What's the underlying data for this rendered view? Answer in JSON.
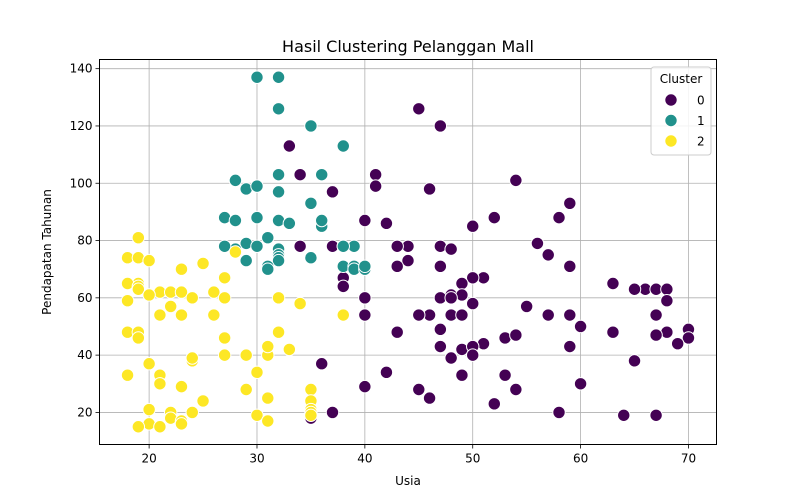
{
  "chart_data": {
    "type": "scatter",
    "title": "Hasil Clustering Pelanggan Mall",
    "xlabel": "Usia",
    "ylabel": "Pendapatan Tahunan",
    "xlim": [
      15.4,
      72.6
    ],
    "ylim": [
      8.8,
      143.2
    ],
    "xticks": [
      20,
      30,
      40,
      50,
      60,
      70
    ],
    "yticks": [
      20,
      40,
      60,
      80,
      100,
      120,
      140
    ],
    "grid": true,
    "legend": {
      "title": "Cluster",
      "placement": "top-right"
    },
    "series": [
      {
        "name": "0",
        "color": "#440154",
        "points": [
          [
            45,
            126
          ],
          [
            47,
            120
          ],
          [
            33,
            113
          ],
          [
            54,
            101
          ],
          [
            34,
            103
          ],
          [
            41,
            103
          ],
          [
            41,
            99
          ],
          [
            46,
            98
          ],
          [
            37,
            97
          ],
          [
            59,
            93
          ],
          [
            52,
            88
          ],
          [
            58,
            88
          ],
          [
            40,
            87
          ],
          [
            42,
            86
          ],
          [
            50,
            85
          ],
          [
            56,
            79
          ],
          [
            44,
            78
          ],
          [
            47,
            78
          ],
          [
            34,
            78
          ],
          [
            37,
            78
          ],
          [
            38,
            78
          ],
          [
            43,
            78
          ],
          [
            48,
            77
          ],
          [
            57,
            75
          ],
          [
            44,
            73
          ],
          [
            43,
            71
          ],
          [
            47,
            71
          ],
          [
            59,
            71
          ],
          [
            51,
            67
          ],
          [
            50,
            67
          ],
          [
            38,
            67
          ],
          [
            38,
            64
          ],
          [
            49,
            65
          ],
          [
            66,
            63
          ],
          [
            65,
            63
          ],
          [
            67,
            63
          ],
          [
            68,
            63
          ],
          [
            63,
            65
          ],
          [
            48,
            61
          ],
          [
            49,
            61
          ],
          [
            47,
            60
          ],
          [
            48,
            60
          ],
          [
            40,
            60
          ],
          [
            50,
            58
          ],
          [
            55,
            57
          ],
          [
            68,
            59
          ],
          [
            46,
            54
          ],
          [
            48,
            54
          ],
          [
            49,
            54
          ],
          [
            40,
            54
          ],
          [
            45,
            54
          ],
          [
            57,
            54
          ],
          [
            59,
            54
          ],
          [
            67,
            54
          ],
          [
            47,
            49
          ],
          [
            60,
            50
          ],
          [
            70,
            49
          ],
          [
            43,
            48
          ],
          [
            63,
            48
          ],
          [
            68,
            48
          ],
          [
            53,
            46
          ],
          [
            54,
            47
          ],
          [
            67,
            47
          ],
          [
            70,
            46
          ],
          [
            69,
            44
          ],
          [
            51,
            44
          ],
          [
            49,
            42
          ],
          [
            50,
            43
          ],
          [
            50,
            40
          ],
          [
            48,
            39
          ],
          [
            47,
            43
          ],
          [
            59,
            43
          ],
          [
            65,
            38
          ],
          [
            36,
            37
          ],
          [
            42,
            34
          ],
          [
            49,
            33
          ],
          [
            53,
            33
          ],
          [
            40,
            29
          ],
          [
            45,
            28
          ],
          [
            54,
            28
          ],
          [
            60,
            30
          ],
          [
            46,
            25
          ],
          [
            52,
            23
          ],
          [
            58,
            20
          ],
          [
            37,
            20
          ],
          [
            35,
            18
          ],
          [
            64,
            19
          ],
          [
            67,
            19
          ]
        ]
      },
      {
        "name": "1",
        "color": "#21918c",
        "points": [
          [
            30,
            137
          ],
          [
            32,
            137
          ],
          [
            32,
            126
          ],
          [
            35,
            120
          ],
          [
            38,
            113
          ],
          [
            32,
            103
          ],
          [
            36,
            103
          ],
          [
            28,
            101
          ],
          [
            29,
            98
          ],
          [
            30,
            99
          ],
          [
            32,
            97
          ],
          [
            35,
            93
          ],
          [
            27,
            88
          ],
          [
            28,
            87
          ],
          [
            30,
            88
          ],
          [
            32,
            87
          ],
          [
            33,
            86
          ],
          [
            36,
            85
          ],
          [
            36,
            87
          ],
          [
            29,
            79
          ],
          [
            30,
            78
          ],
          [
            28,
            77
          ],
          [
            27,
            78
          ],
          [
            32,
            77
          ],
          [
            31,
            81
          ],
          [
            32,
            75
          ],
          [
            32,
            74
          ],
          [
            32,
            73
          ],
          [
            29,
            73
          ],
          [
            35,
            74
          ],
          [
            39,
            78
          ],
          [
            38,
            78
          ],
          [
            31,
            71
          ],
          [
            31,
            70
          ],
          [
            38,
            71
          ],
          [
            39,
            71
          ],
          [
            39,
            70
          ],
          [
            40,
            70
          ],
          [
            40,
            71
          ]
        ]
      },
      {
        "name": "2",
        "color": "#fde725",
        "points": [
          [
            19,
            81
          ],
          [
            18,
            74
          ],
          [
            19,
            74
          ],
          [
            20,
            73
          ],
          [
            23,
            70
          ],
          [
            25,
            72
          ],
          [
            21,
            62
          ],
          [
            19,
            65
          ],
          [
            18,
            65
          ],
          [
            19,
            64
          ],
          [
            19,
            63
          ],
          [
            20,
            61
          ],
          [
            22,
            62
          ],
          [
            23,
            62
          ],
          [
            24,
            60
          ],
          [
            26,
            62
          ],
          [
            27,
            60
          ],
          [
            27,
            67
          ],
          [
            28,
            76
          ],
          [
            18,
            59
          ],
          [
            22,
            57
          ],
          [
            21,
            54
          ],
          [
            23,
            54
          ],
          [
            26,
            54
          ],
          [
            32,
            60
          ],
          [
            34,
            58
          ],
          [
            38,
            54
          ],
          [
            18,
            48
          ],
          [
            19,
            48
          ],
          [
            19,
            46
          ],
          [
            27,
            46
          ],
          [
            32,
            48
          ],
          [
            27,
            40
          ],
          [
            29,
            40
          ],
          [
            31,
            40
          ],
          [
            31,
            43
          ],
          [
            33,
            42
          ],
          [
            24,
            38
          ],
          [
            24,
            39
          ],
          [
            20,
            37
          ],
          [
            21,
            33
          ],
          [
            18,
            33
          ],
          [
            21,
            30
          ],
          [
            23,
            29
          ],
          [
            29,
            28
          ],
          [
            30,
            34
          ],
          [
            35,
            28
          ],
          [
            25,
            24
          ],
          [
            31,
            25
          ],
          [
            35,
            24
          ],
          [
            35,
            21
          ],
          [
            35,
            20
          ],
          [
            35,
            19
          ],
          [
            20,
            21
          ],
          [
            22,
            20
          ],
          [
            24,
            20
          ],
          [
            30,
            19
          ],
          [
            22,
            18
          ],
          [
            23,
            17
          ],
          [
            23,
            16
          ],
          [
            20,
            16
          ],
          [
            21,
            15
          ],
          [
            19,
            15
          ],
          [
            31,
            17
          ]
        ]
      }
    ]
  }
}
